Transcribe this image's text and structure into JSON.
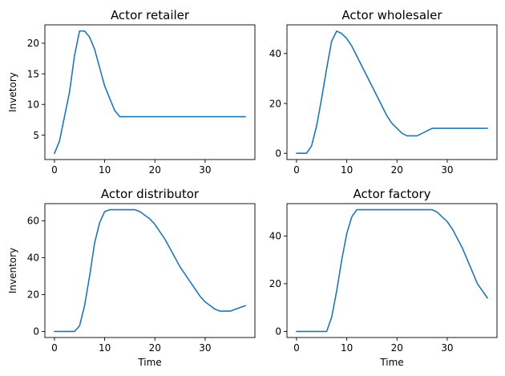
{
  "chart_data": [
    {
      "type": "line",
      "title": "Actor retailer",
      "xlabel": "",
      "ylabel": "Invetory",
      "xlim": [
        -1.9,
        39.9
      ],
      "ylim": [
        1.0,
        23.0
      ],
      "xticks": [
        0,
        10,
        20,
        30
      ],
      "yticks": [
        5,
        10,
        15,
        20
      ],
      "grid": false,
      "color": "#1f77b4",
      "x": [
        0,
        1,
        2,
        3,
        4,
        5,
        6,
        7,
        8,
        9,
        10,
        11,
        12,
        13,
        14,
        15,
        16,
        17,
        18,
        19,
        20,
        21,
        22,
        23,
        24,
        25,
        26,
        27,
        28,
        29,
        30,
        31,
        32,
        33,
        34,
        35,
        36,
        37,
        38
      ],
      "y": [
        2,
        4,
        8,
        12,
        18,
        22,
        22,
        21,
        19,
        16,
        13,
        11,
        9,
        8,
        8,
        8,
        8,
        8,
        8,
        8,
        8,
        8,
        8,
        8,
        8,
        8,
        8,
        8,
        8,
        8,
        8,
        8,
        8,
        8,
        8,
        8,
        8,
        8,
        8
      ]
    },
    {
      "type": "line",
      "title": "Actor wholesaler",
      "xlabel": "",
      "ylabel": "",
      "xlim": [
        -1.9,
        39.9
      ],
      "ylim": [
        -2.5,
        51.5
      ],
      "xticks": [
        0,
        10,
        20,
        30
      ],
      "yticks": [
        0,
        20,
        40
      ],
      "grid": false,
      "color": "#1f77b4",
      "x": [
        0,
        1,
        2,
        3,
        4,
        5,
        6,
        7,
        8,
        9,
        10,
        11,
        12,
        13,
        14,
        15,
        16,
        17,
        18,
        19,
        20,
        21,
        22,
        23,
        24,
        25,
        26,
        27,
        28,
        29,
        30,
        31,
        32,
        33,
        34,
        35,
        36,
        37,
        38
      ],
      "y": [
        0,
        0,
        0,
        3,
        11,
        22,
        34,
        45,
        49,
        48,
        46,
        43,
        39,
        35,
        31,
        27,
        23,
        19,
        15,
        12,
        10,
        8,
        7,
        7,
        7,
        8,
        9,
        10,
        10,
        10,
        10,
        10,
        10,
        10,
        10,
        10,
        10,
        10,
        10
      ]
    },
    {
      "type": "line",
      "title": "Actor distributor",
      "xlabel": "Time",
      "ylabel": "Inventory",
      "xlim": [
        -1.9,
        39.9
      ],
      "ylim": [
        -3.3,
        69.3
      ],
      "xticks": [
        0,
        10,
        20,
        30
      ],
      "yticks": [
        0,
        20,
        40,
        60
      ],
      "grid": false,
      "color": "#1f77b4",
      "x": [
        0,
        1,
        2,
        3,
        4,
        5,
        6,
        7,
        8,
        9,
        10,
        11,
        12,
        13,
        14,
        15,
        16,
        17,
        18,
        19,
        20,
        21,
        22,
        23,
        24,
        25,
        26,
        27,
        28,
        29,
        30,
        31,
        32,
        33,
        34,
        35,
        36,
        37,
        38
      ],
      "y": [
        0,
        0,
        0,
        0,
        0,
        3,
        14,
        30,
        48,
        59,
        65,
        66,
        66,
        66,
        66,
        66,
        66,
        65,
        63,
        61,
        58,
        54,
        50,
        45,
        40,
        35,
        31,
        27,
        23,
        19,
        16,
        14,
        12,
        11,
        11,
        11,
        12,
        13,
        14
      ]
    },
    {
      "type": "line",
      "title": "Actor factory",
      "xlabel": "Time",
      "ylabel": "",
      "xlim": [
        -1.9,
        39.9
      ],
      "ylim": [
        -2.55,
        53.55
      ],
      "xticks": [
        0,
        10,
        20,
        30
      ],
      "yticks": [
        0,
        20,
        40
      ],
      "grid": false,
      "color": "#1f77b4",
      "x": [
        0,
        1,
        2,
        3,
        4,
        5,
        6,
        7,
        8,
        9,
        10,
        11,
        12,
        13,
        14,
        15,
        16,
        17,
        18,
        19,
        20,
        21,
        22,
        23,
        24,
        25,
        26,
        27,
        28,
        29,
        30,
        31,
        32,
        33,
        34,
        35,
        36,
        37,
        38
      ],
      "y": [
        0,
        0,
        0,
        0,
        0,
        0,
        0,
        6,
        17,
        30,
        41,
        48,
        51,
        51,
        51,
        51,
        51,
        51,
        51,
        51,
        51,
        51,
        51,
        51,
        51,
        51,
        51,
        51,
        50,
        48,
        46,
        43,
        39,
        35,
        30,
        25,
        20,
        17,
        14
      ]
    }
  ]
}
